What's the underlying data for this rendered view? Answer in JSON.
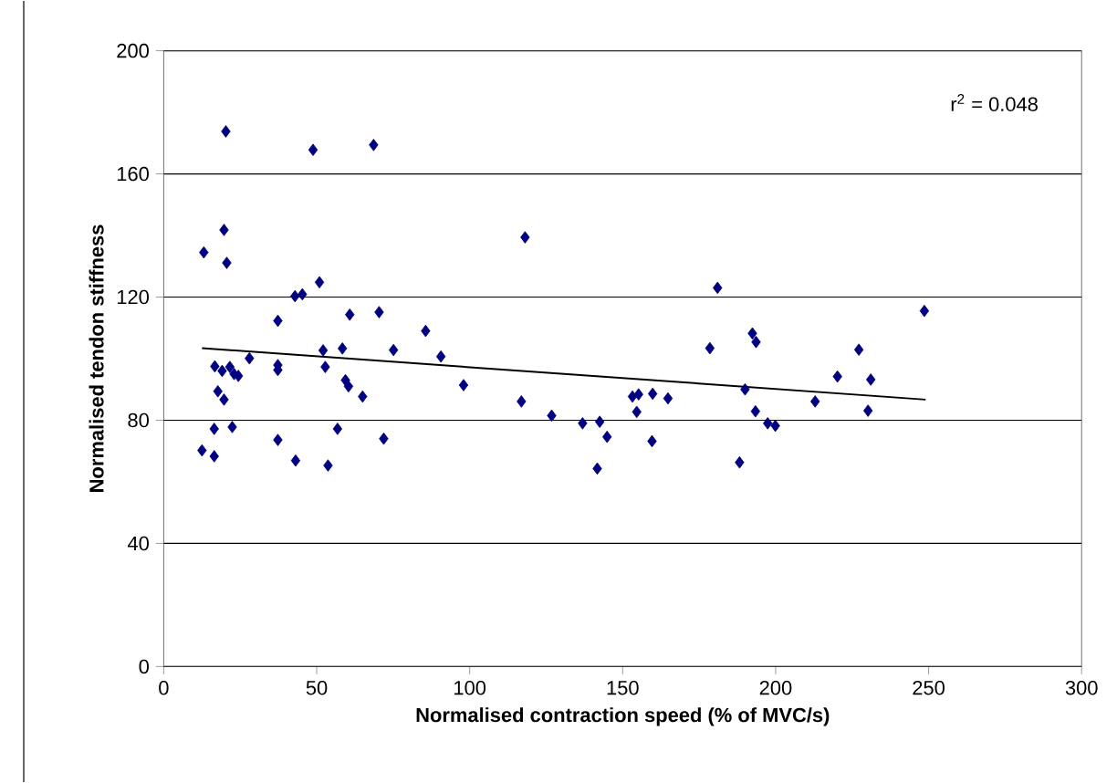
{
  "chart_data": {
    "type": "scatter",
    "xlabel": "Normalised contraction speed (% of MVC/s)",
    "ylabel": "Normalised tendon stiffness",
    "xlim": [
      0,
      300
    ],
    "xticks": [
      0,
      50,
      100,
      150,
      200,
      250,
      300
    ],
    "ylim": [
      0,
      200
    ],
    "yticks": [
      0,
      40,
      80,
      120,
      160,
      200
    ],
    "grid": "y",
    "annotations": [
      "r$^{2}$ = 0.048"
    ],
    "series": [
      {
        "marker": "diamond",
        "color": "#000080",
        "x": [
          20.3,
          48.8,
          68.6,
          19.7,
          13.1,
          20.6,
          50.9,
          42.9,
          45.3,
          37.3,
          60.8,
          70.4,
          85.6,
          90.6,
          98,
          75.1,
          58.4,
          52.1,
          52.8,
          59.4,
          60.4,
          65,
          56.8,
          71.9,
          53.7,
          43.1,
          37.3,
          37.3,
          37.3,
          28,
          16.7,
          19.1,
          21.6,
          24.4,
          23,
          17.7,
          19.7,
          16.5,
          22.4,
          12.5,
          16.5,
          118.1,
          116.9,
          126.8,
          136.9,
          142.5,
          144.9,
          141.7,
          153.2,
          155.2,
          159.8,
          164.8,
          154.6,
          159.6,
          178.5,
          181,
          192.4,
          193.6,
          190,
          188.2,
          193.4,
          197.4,
          199.9,
          212.9,
          220.2,
          227.2,
          231.1,
          230.2,
          248.6
        ],
        "values": [
          173.8,
          167.8,
          169.4,
          141.8,
          134.5,
          131.1,
          124.8,
          120.3,
          120.9,
          112.3,
          114.3,
          115.1,
          109,
          100.7,
          91.4,
          102.8,
          103.3,
          102.7,
          97.3,
          93,
          91,
          87.7,
          77.2,
          74,
          65.3,
          66.9,
          73.6,
          97.9,
          96.3,
          100.1,
          97.5,
          96,
          97.3,
          94.4,
          95,
          89.4,
          86.7,
          77.2,
          77.8,
          70.2,
          68.3,
          139.4,
          86.1,
          81.5,
          79,
          79.5,
          74.6,
          64.3,
          87.7,
          88.4,
          88.6,
          87.1,
          82.7,
          73.2,
          103.4,
          123,
          108.2,
          105.4,
          90,
          66.3,
          82.9,
          79,
          78.2,
          86.1,
          94.2,
          102.9,
          93.2,
          83.1,
          115.5
        ]
      },
      {
        "type": "line",
        "marker": "none",
        "color": "#000000",
        "x": [
          12.5,
          249
        ],
        "values": [
          103.4,
          86.7
        ]
      }
    ]
  }
}
